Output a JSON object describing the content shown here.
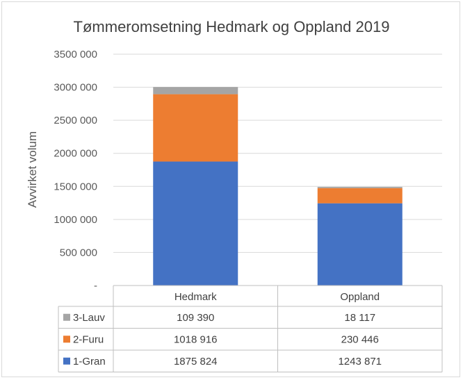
{
  "chart_data": {
    "type": "bar",
    "stacked": true,
    "title": "Tømmeromsetning Hedmark og Oppland 2019",
    "ylabel": "Avvirket volum",
    "xlabel": "",
    "ylim": [
      0,
      3500000
    ],
    "yticks": [
      0,
      500000,
      1000000,
      1500000,
      2000000,
      2500000,
      3000000,
      3500000
    ],
    "ytick_labels": [
      "-",
      "500 000",
      "1000 000",
      "1500 000",
      "2000 000",
      "2500 000",
      "3000 000",
      "3500 000"
    ],
    "grid": true,
    "legend": "data-table",
    "categories": [
      "Hedmark",
      "Oppland"
    ],
    "series": [
      {
        "name": "1-Gran",
        "color": "#4472c4",
        "values": [
          1875824,
          1243871
        ],
        "labels": [
          "1875 824",
          "1243 871"
        ]
      },
      {
        "name": "2-Furu",
        "color": "#ed7d31",
        "values": [
          1018916,
          230446
        ],
        "labels": [
          "1018 916",
          "230 446"
        ]
      },
      {
        "name": "3-Lauv",
        "color": "#a5a5a5",
        "values": [
          109390,
          18117
        ],
        "labels": [
          "109 390",
          "18 117"
        ]
      }
    ]
  }
}
